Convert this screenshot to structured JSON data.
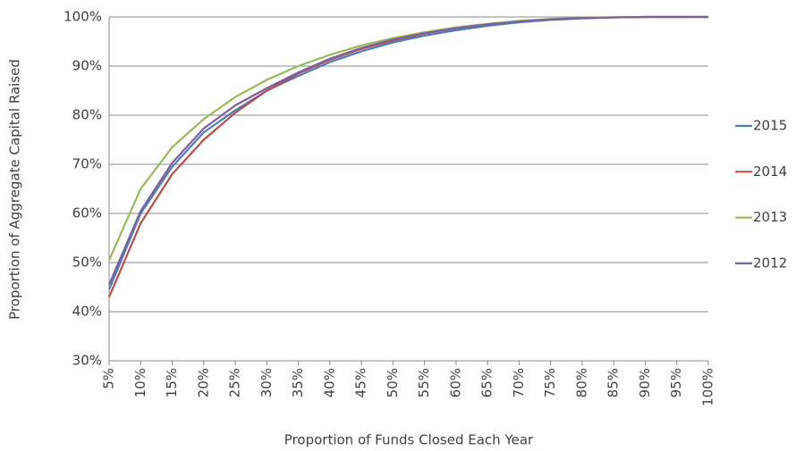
{
  "chart_data": {
    "type": "line",
    "y_label": "Proportion of Aggregate Capital Raised",
    "x_label": "Proportion of Funds Closed Each Year",
    "categories": [
      "5%",
      "10%",
      "15%",
      "20%",
      "25%",
      "30%",
      "35%",
      "40%",
      "45%",
      "50%",
      "55%",
      "60%",
      "65%",
      "70%",
      "75%",
      "80%",
      "85%",
      "90%",
      "95%",
      "100%"
    ],
    "ylim": [
      30,
      100
    ],
    "yticks": [
      {
        "value": 30,
        "label": "30%"
      },
      {
        "value": 40,
        "label": "40%"
      },
      {
        "value": 50,
        "label": "50%"
      },
      {
        "value": 60,
        "label": "60%"
      },
      {
        "value": 70,
        "label": "70%"
      },
      {
        "value": 80,
        "label": "80%"
      },
      {
        "value": 90,
        "label": "90%"
      },
      {
        "value": 100,
        "label": "100%"
      }
    ],
    "grid": true,
    "legend": "right",
    "series": [
      {
        "name": "2015",
        "color": "#4a7ebb",
        "values": [
          44.5,
          60,
          69.5,
          76.5,
          81,
          85,
          88,
          90.8,
          93,
          94.8,
          96.2,
          97.3,
          98.2,
          98.9,
          99.4,
          99.7,
          99.9,
          100,
          100,
          100
        ]
      },
      {
        "name": "2014",
        "color": "#be4b48",
        "values": [
          43,
          58,
          68,
          75,
          80.5,
          85,
          88.5,
          91.3,
          93.5,
          95.2,
          96.6,
          97.7,
          98.5,
          99.1,
          99.5,
          99.8,
          99.9,
          100,
          100,
          100
        ]
      },
      {
        "name": "2013",
        "color": "#98b954",
        "values": [
          50.5,
          65,
          73.5,
          79.2,
          83.7,
          87.2,
          90,
          92.3,
          94.2,
          95.7,
          96.9,
          97.9,
          98.6,
          99.2,
          99.6,
          99.8,
          99.95,
          100,
          100,
          100
        ]
      },
      {
        "name": "2012",
        "color": "#7d60a0",
        "values": [
          45.5,
          60.5,
          70.3,
          77.3,
          82,
          85.5,
          88.7,
          91.5,
          93.7,
          95.4,
          96.7,
          97.7,
          98.5,
          99.1,
          99.5,
          99.8,
          99.9,
          100,
          100,
          100
        ]
      }
    ]
  }
}
